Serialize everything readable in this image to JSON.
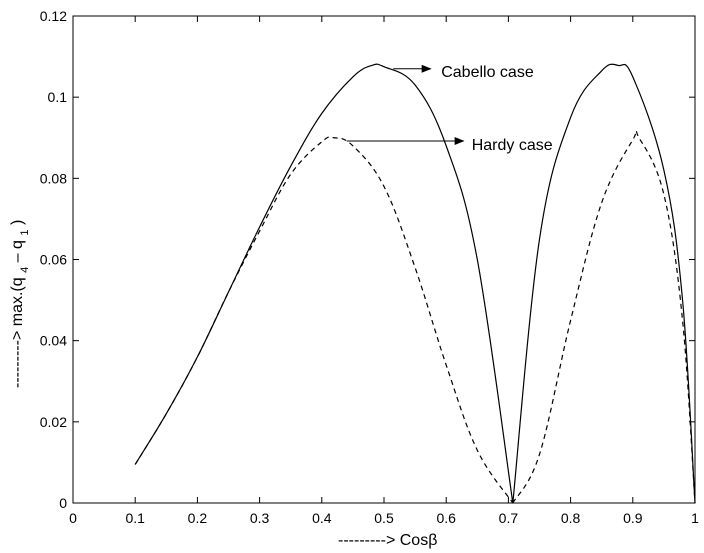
{
  "chart_data": {
    "type": "line",
    "title": "",
    "xlabel": "--------->  Cosβ",
    "ylabel_prefix": "--------->",
    "ylabel_main": "max.(q",
    "ylabel_sub1": "4",
    "ylabel_mid": " – q",
    "ylabel_sub2": "1",
    "ylabel_end": ")",
    "xlim": [
      0,
      1
    ],
    "ylim": [
      0,
      0.12
    ],
    "xticks": [
      0,
      0.1,
      0.2,
      0.3,
      0.4,
      0.5,
      0.6,
      0.7,
      0.8,
      0.9,
      1
    ],
    "xtick_labels": [
      "0",
      "0.1",
      "0.2",
      "0.3",
      "0.4",
      "0.5",
      "0.6",
      "0.7",
      "0.8",
      "0.9",
      "1"
    ],
    "yticks": [
      0,
      0.02,
      0.04,
      0.06,
      0.08,
      0.1,
      0.12
    ],
    "ytick_labels": [
      "0",
      "0.02",
      "0.04",
      "0.06",
      "0.08",
      "0.1",
      "0.12"
    ],
    "grid": false,
    "series": [
      {
        "name": "Cabello case",
        "style": "solid",
        "color": "#000000",
        "x": [
          0.1,
          0.15,
          0.2,
          0.25,
          0.3,
          0.35,
          0.4,
          0.45,
          0.48,
          0.5,
          0.55,
          0.6,
          0.65,
          0.7071,
          0.75,
          0.8,
          0.85,
          0.877,
          0.9,
          0.95,
          0.98,
          1.0
        ],
        "y": [
          0.0095,
          0.022,
          0.036,
          0.052,
          0.068,
          0.083,
          0.096,
          0.105,
          0.1078,
          0.1075,
          0.103,
          0.088,
          0.06,
          0.0,
          0.065,
          0.095,
          0.1065,
          0.1078,
          0.105,
          0.082,
          0.05,
          0.0
        ]
      },
      {
        "name": "Hardy case",
        "style": "dashed",
        "color": "#000000",
        "x": [
          0.1,
          0.15,
          0.2,
          0.25,
          0.3,
          0.35,
          0.4,
          0.42,
          0.45,
          0.5,
          0.55,
          0.6,
          0.65,
          0.7071,
          0.75,
          0.8,
          0.85,
          0.9,
          0.91,
          0.95,
          0.98,
          1.0
        ],
        "y": [
          0.0095,
          0.022,
          0.036,
          0.052,
          0.067,
          0.081,
          0.089,
          0.09,
          0.088,
          0.078,
          0.058,
          0.034,
          0.013,
          0.0,
          0.012,
          0.045,
          0.074,
          0.0895,
          0.09,
          0.076,
          0.045,
          0.0
        ]
      }
    ],
    "annotations": [
      {
        "text": "Cabello case",
        "arrow_from": [
          0.515,
          0.107
        ],
        "arrow_to": [
          0.575,
          0.107
        ],
        "label_at": [
          0.592,
          0.1064
        ]
      },
      {
        "text": "Hardy case",
        "arrow_from": [
          0.44,
          0.0892
        ],
        "arrow_to": [
          0.628,
          0.0892
        ],
        "label_at": [
          0.641,
          0.0885
        ]
      }
    ]
  }
}
